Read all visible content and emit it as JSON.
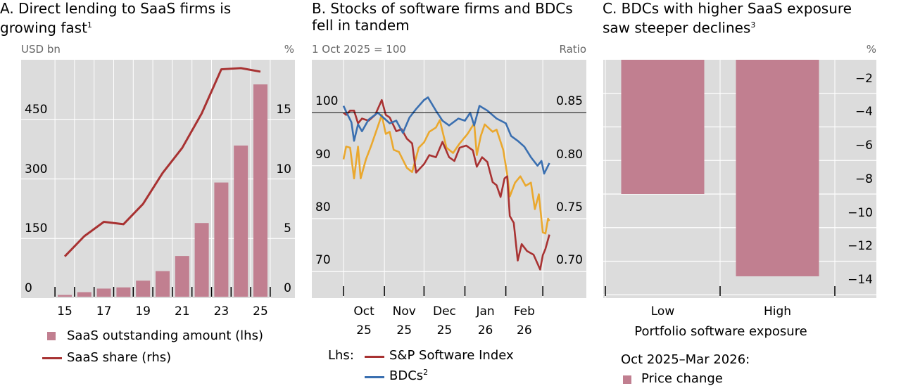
{
  "panels": {
    "a": {
      "title_line1": "A. Direct lending to SaaS firms is",
      "title_line2": "growing fast",
      "title_sup": "1",
      "unit_left": "USD bn",
      "unit_right": "%"
    },
    "b": {
      "title_line1": "B. Stocks of software firms and BDCs",
      "title_line2": "fell in tandem",
      "unit_left": "1 Oct 2025 = 100",
      "unit_right": "Ratio"
    },
    "c": {
      "title_line1": "C. BDCs with higher SaaS exposure",
      "title_line2": "saw steeper declines",
      "title_sup": "3",
      "unit_right": "%"
    }
  },
  "colors": {
    "bar": "#c17f90",
    "line_red": "#a83232",
    "line_blue": "#3a6fb0",
    "line_yellow": "#eaa82e",
    "plot_bg": "#dcdcdc",
    "grid": "#ffffff"
  },
  "chart_data": [
    {
      "type": "bar+line",
      "categories": [
        "15",
        "16",
        "17",
        "18",
        "19",
        "20",
        "21",
        "22",
        "23",
        "24",
        "25"
      ],
      "series": [
        {
          "name": "SaaS outstanding amount (lhs)",
          "type": "bar",
          "axis": "left",
          "values": [
            8,
            15,
            24,
            27,
            44,
            68,
            106,
            189,
            291,
            384,
            538
          ]
        },
        {
          "name": "SaaS share (rhs)",
          "type": "line",
          "axis": "right",
          "values": [
            3.5,
            5.2,
            6.4,
            6.2,
            7.9,
            10.5,
            12.6,
            15.5,
            19.2,
            19.3,
            19.0
          ]
        }
      ],
      "x_tick_labels": [
        "15",
        "17",
        "19",
        "21",
        "23",
        "25"
      ],
      "ylim_left": [
        0,
        600
      ],
      "yticks_left": [
        "0",
        "150",
        "300",
        "450"
      ],
      "ytick_values_left": [
        0,
        150,
        300,
        450
      ],
      "ylim_right": [
        0,
        20
      ],
      "yticks_right": [
        "0",
        "5",
        "10",
        "15"
      ],
      "ytick_values_right": [
        0,
        5,
        10,
        15
      ],
      "grid": true,
      "legend": "bottom"
    },
    {
      "type": "line",
      "xlim": [
        "2025-09-07",
        "2026-04-03"
      ],
      "x_ticks": [
        "2025-10-01",
        "2025-11-01",
        "2025-12-01",
        "2026-01-01",
        "2026-02-01",
        "2026-03-01"
      ],
      "x_tick_labels": [
        {
          "m": "Oct",
          "y": "25"
        },
        {
          "m": "Nov",
          "y": "25"
        },
        {
          "m": "Dec",
          "y": "25"
        },
        {
          "m": "Jan",
          "y": "26"
        },
        {
          "m": "Feb",
          "y": "26"
        }
      ],
      "ylim_left": [
        65,
        110
      ],
      "yticks_left": [
        "70",
        "80",
        "90",
        "100"
      ],
      "ytick_values_left": [
        70,
        80,
        90,
        100
      ],
      "ylim_right": [
        0.675,
        0.9
      ],
      "yticks_right": [
        "0.70",
        "0.75",
        "0.80",
        "0.85"
      ],
      "ytick_values_right": [
        0.7,
        0.75,
        0.8,
        0.85
      ],
      "reference_line": 100,
      "legend_prefix": "Lhs:",
      "series": [
        {
          "name": "S&P Software Index",
          "axis": "left",
          "color": "#a83232",
          "points": [
            [
              "2025-10-01",
              100
            ],
            [
              "2025-10-03",
              99.6
            ],
            [
              "2025-10-06",
              100.4
            ],
            [
              "2025-10-09",
              100.4
            ],
            [
              "2025-10-12",
              98
            ],
            [
              "2025-10-15",
              98.9
            ],
            [
              "2025-10-20",
              98.5
            ],
            [
              "2025-10-25",
              99.6
            ],
            [
              "2025-10-30",
              102.4
            ],
            [
              "2025-11-02",
              99.6
            ],
            [
              "2025-11-05",
              99.1
            ],
            [
              "2025-11-10",
              96.5
            ],
            [
              "2025-11-14",
              96.9
            ],
            [
              "2025-11-18",
              95.1
            ],
            [
              "2025-11-22",
              94.2
            ],
            [
              "2025-11-25",
              88.7
            ],
            [
              "2025-12-01",
              90.3
            ],
            [
              "2025-12-05",
              92
            ],
            [
              "2025-12-10",
              91.6
            ],
            [
              "2025-12-15",
              94.5
            ],
            [
              "2025-12-20",
              91.6
            ],
            [
              "2025-12-24",
              90.9
            ],
            [
              "2025-12-28",
              93.4
            ],
            [
              "2026-01-02",
              93.8
            ],
            [
              "2026-01-07",
              92.9
            ],
            [
              "2026-01-10",
              89.8
            ],
            [
              "2026-01-14",
              91.6
            ],
            [
              "2026-01-18",
              90.7
            ],
            [
              "2026-01-22",
              86.9
            ],
            [
              "2026-01-25",
              86.3
            ],
            [
              "2026-01-28",
              84.1
            ],
            [
              "2026-01-31",
              87.6
            ],
            [
              "2026-02-02",
              88
            ],
            [
              "2026-02-04",
              80.5
            ],
            [
              "2026-02-07",
              79.2
            ],
            [
              "2026-02-10",
              72.1
            ],
            [
              "2026-02-13",
              75.2
            ],
            [
              "2026-02-17",
              73.9
            ],
            [
              "2026-02-22",
              73.2
            ],
            [
              "2026-02-27",
              70.4
            ],
            [
              "2026-03-01",
              73.1
            ],
            [
              "2026-03-03",
              74.3
            ],
            [
              "2026-03-06",
              77
            ]
          ]
        },
        {
          "name": "BDCs",
          "name_sup": "2",
          "axis": "left",
          "color": "#3a6fb0",
          "points": [
            [
              "2025-10-01",
              101.3
            ],
            [
              "2025-10-03",
              100.2
            ],
            [
              "2025-10-07",
              98.2
            ],
            [
              "2025-10-09",
              94.7
            ],
            [
              "2025-10-12",
              97.8
            ],
            [
              "2025-10-15",
              96.5
            ],
            [
              "2025-10-20",
              98.7
            ],
            [
              "2025-10-27",
              100
            ],
            [
              "2025-11-01",
              98.9
            ],
            [
              "2025-11-05",
              98
            ],
            [
              "2025-11-10",
              98.5
            ],
            [
              "2025-11-15",
              96.2
            ],
            [
              "2025-11-20",
              99.1
            ],
            [
              "2025-11-25",
              100.7
            ],
            [
              "2025-12-01",
              102.4
            ],
            [
              "2025-12-04",
              102.9
            ],
            [
              "2025-12-10",
              100.4
            ],
            [
              "2025-12-15",
              98.5
            ],
            [
              "2025-12-20",
              97.6
            ],
            [
              "2025-12-27",
              98.9
            ],
            [
              "2026-01-01",
              98.5
            ],
            [
              "2026-01-05",
              100
            ],
            [
              "2026-01-08",
              97.6
            ],
            [
              "2026-01-12",
              101.3
            ],
            [
              "2026-01-18",
              100.4
            ],
            [
              "2026-01-25",
              98.9
            ],
            [
              "2026-02-01",
              98
            ],
            [
              "2026-02-05",
              95.6
            ],
            [
              "2026-02-10",
              94.7
            ],
            [
              "2026-02-15",
              93.6
            ],
            [
              "2026-02-20",
              91.6
            ],
            [
              "2026-02-25",
              90
            ],
            [
              "2026-02-28",
              90.9
            ],
            [
              "2026-03-02",
              88.5
            ],
            [
              "2026-03-06",
              90.5
            ]
          ]
        },
        {
          "axis": "right",
          "color": "#eaa82e",
          "points": [
            [
              "2025-10-01",
              0.806
            ],
            [
              "2025-10-03",
              0.818
            ],
            [
              "2025-10-06",
              0.817
            ],
            [
              "2025-10-09",
              0.788
            ],
            [
              "2025-10-12",
              0.818
            ],
            [
              "2025-10-14",
              0.788
            ],
            [
              "2025-10-18",
              0.806
            ],
            [
              "2025-10-22",
              0.819
            ],
            [
              "2025-10-27",
              0.837
            ],
            [
              "2025-10-30",
              0.848
            ],
            [
              "2025-11-02",
              0.83
            ],
            [
              "2025-11-05",
              0.832
            ],
            [
              "2025-11-08",
              0.815
            ],
            [
              "2025-11-12",
              0.813
            ],
            [
              "2025-11-18",
              0.798
            ],
            [
              "2025-11-22",
              0.794
            ],
            [
              "2025-11-27",
              0.817
            ],
            [
              "2025-12-01",
              0.822
            ],
            [
              "2025-12-05",
              0.832
            ],
            [
              "2025-12-10",
              0.836
            ],
            [
              "2025-12-13",
              0.843
            ],
            [
              "2025-12-18",
              0.817
            ],
            [
              "2025-12-23",
              0.812
            ],
            [
              "2025-12-28",
              0.821
            ],
            [
              "2026-01-03",
              0.83
            ],
            [
              "2026-01-08",
              0.84
            ],
            [
              "2026-01-10",
              0.81
            ],
            [
              "2026-01-13",
              0.828
            ],
            [
              "2026-01-16",
              0.839
            ],
            [
              "2026-01-22",
              0.832
            ],
            [
              "2026-01-25",
              0.834
            ],
            [
              "2026-01-30",
              0.815
            ],
            [
              "2026-02-02",
              0.792
            ],
            [
              "2026-02-04",
              0.771
            ],
            [
              "2026-02-08",
              0.784
            ],
            [
              "2026-02-12",
              0.79
            ],
            [
              "2026-02-16",
              0.781
            ],
            [
              "2026-02-20",
              0.784
            ],
            [
              "2026-02-23",
              0.759
            ],
            [
              "2026-02-26",
              0.773
            ],
            [
              "2026-03-01",
              0.737
            ],
            [
              "2026-03-03",
              0.736
            ],
            [
              "2026-03-05",
              0.75
            ],
            [
              "2026-03-06",
              0.748
            ]
          ]
        }
      ],
      "grid": true
    },
    {
      "type": "bar",
      "categories": [
        "Low",
        "High"
      ],
      "values": [
        -8.0,
        -12.9
      ],
      "xlabel": "Portfolio software exposure",
      "ylim": [
        -14.2,
        0
      ],
      "yticks": [
        "−2",
        "−4",
        "−6",
        "−8",
        "−10",
        "−12",
        "−14"
      ],
      "ytick_values": [
        -2,
        -4,
        -6,
        -8,
        -10,
        -12,
        -14
      ],
      "legend_title": "Oct 2025–Mar 2026:",
      "series_name": "Price change",
      "grid": true
    }
  ]
}
